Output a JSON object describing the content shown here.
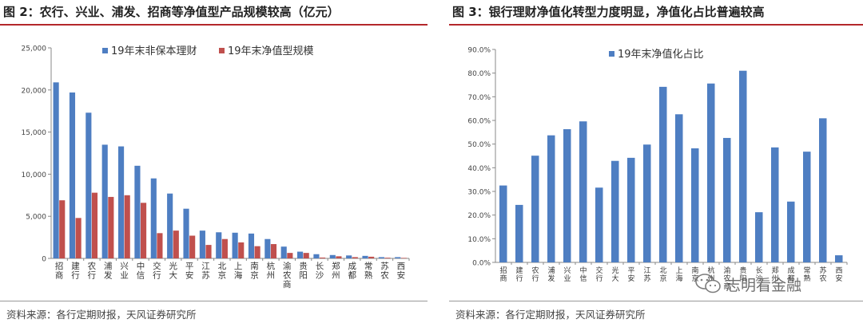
{
  "figures": [
    {
      "title": "图 2：农行、兴业、浦发、招商等净值型产品规模较高（亿元）",
      "source": "资料来源：各行定期财报，天风证券研究所",
      "chart_data": {
        "type": "bar",
        "categories": [
          "招商",
          "建行",
          "农行",
          "浦发",
          "兴业",
          "中信",
          "交行",
          "光大",
          "平安",
          "江苏",
          "北京",
          "上海",
          "南京",
          "杭州",
          "渝农商",
          "贵阳",
          "长沙",
          "郑州",
          "成都",
          "常熟",
          "苏农",
          "西安"
        ],
        "series": [
          {
            "name": "19年末非保本理财",
            "color": "#4e7ec2",
            "values": [
              20900,
              19700,
              17300,
              13500,
              13300,
              11000,
              9500,
              7700,
              5900,
              3300,
              3100,
              3050,
              2950,
              2300,
              1400,
              800,
              500,
              400,
              350,
              300,
              150,
              150
            ]
          },
          {
            "name": "19年末净值型规模",
            "color": "#c0504d",
            "values": [
              6900,
              4800,
              7800,
              7300,
              7500,
              6600,
              3000,
              3300,
              2700,
              1600,
              2300,
              1900,
              1450,
              1700,
              650,
              650,
              100,
              250,
              150,
              200,
              80,
              60
            ]
          }
        ],
        "ylim": [
          0,
          25000
        ],
        "yticks": [
          "0",
          "5,000",
          "10,000",
          "15,000",
          "20,000",
          "25,000"
        ],
        "grid": false,
        "legend": "top"
      }
    },
    {
      "title": "图 3：银行理财净值化转型力度明显，净值化占比普遍较高",
      "source": "资料来源：各行定期财报，天风证券研究所",
      "chart_data": {
        "type": "bar",
        "categories": [
          "招商",
          "建行",
          "农行",
          "浦发",
          "兴业",
          "中信",
          "交行",
          "光大",
          "平安",
          "江苏",
          "北京",
          "上海",
          "南京",
          "杭州",
          "渝农商",
          "贵阳",
          "长沙",
          "郑州",
          "成都",
          "常熟",
          "苏农",
          "西安"
        ],
        "series": [
          {
            "name": "19年末净值化占比",
            "color": "#4e7ec2",
            "values": [
              32.5,
              24.3,
              45.1,
              53.7,
              56.3,
              59.6,
              31.6,
              42.9,
              44.2,
              49.8,
              74.2,
              62.6,
              48.2,
              75.6,
              52.6,
              81.0,
              21.2,
              48.6,
              25.7,
              46.8,
              60.9,
              3.0
            ]
          }
        ],
        "ylim": [
          0,
          90
        ],
        "yticks": [
          "0.0%",
          "10.0%",
          "20.0%",
          "30.0%",
          "40.0%",
          "50.0%",
          "60.0%",
          "70.0%",
          "80.0%",
          "90.0%"
        ],
        "grid": false,
        "legend": "top"
      }
    }
  ],
  "watermark": "志明看金融"
}
